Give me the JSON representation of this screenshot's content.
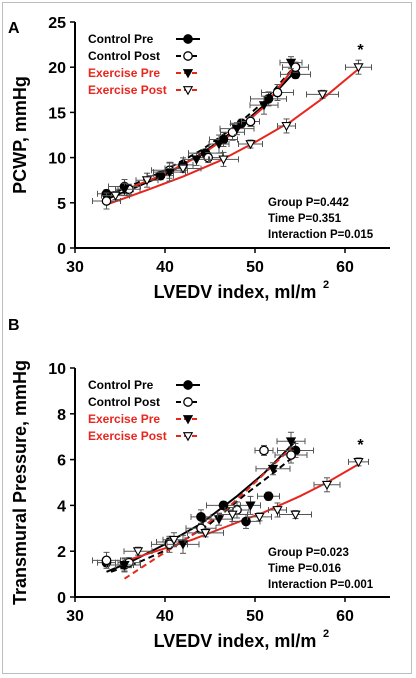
{
  "colors": {
    "control": "#000000",
    "exercise": "#e8261e"
  },
  "panels": [
    {
      "panel_label": "A",
      "stats": [
        "Group P=0.442",
        "Time P=0.351",
        "Interaction P=0.015"
      ],
      "legend": [
        {
          "label": "Control Pre"
        },
        {
          "label": "Control Post"
        },
        {
          "label": "Exercise Pre"
        },
        {
          "label": "Exercise Post"
        }
      ],
      "annotation": "*"
    },
    {
      "panel_label": "B",
      "stats": [
        "Group P=0.023",
        "Time P=0.016",
        "Interaction P=0.001"
      ],
      "legend": [
        {
          "label": "Control Pre"
        },
        {
          "label": "Control Post"
        },
        {
          "label": "Exercise Pre"
        },
        {
          "label": "Exercise Post"
        }
      ],
      "annotation": "*"
    }
  ],
  "chart_data": [
    {
      "type": "scatter",
      "panel": "A",
      "ylabel": "PCWP, mmHg",
      "xlabel": "LVEDV index, ml/m",
      "xlabel_sup": "2",
      "xlim": [
        30,
        65
      ],
      "ylim": [
        0,
        25
      ],
      "xticks": [
        30,
        40,
        50,
        60
      ],
      "yticks": [
        0,
        5,
        10,
        15,
        20,
        25
      ],
      "legend_position": "top-left",
      "series": [
        {
          "name": "Control Pre",
          "color": "#000000",
          "marker": "circle-filled",
          "line": "solid",
          "points": [
            [
              33.5,
              6.0
            ],
            [
              35.5,
              6.8
            ],
            [
              39.5,
              8.0
            ],
            [
              42.0,
              9.2
            ],
            [
              44.5,
              10.5
            ],
            [
              46.5,
              12.0
            ],
            [
              48.5,
              13.8
            ],
            [
              51.5,
              16.5
            ],
            [
              54.5,
              19.2
            ]
          ],
          "fit": [
            [
              33.5,
              5.4
            ],
            [
              36,
              6.4
            ],
            [
              40,
              8.1
            ],
            [
              44,
              10.4
            ],
            [
              48,
              13.2
            ],
            [
              51,
              15.8
            ],
            [
              54.5,
              19.6
            ]
          ]
        },
        {
          "name": "Control Post",
          "color": "#000000",
          "marker": "circle-open",
          "line": "dashed",
          "points": [
            [
              33.5,
              5.2
            ],
            [
              36.0,
              6.5
            ],
            [
              40.5,
              8.6
            ],
            [
              44.8,
              10.0
            ],
            [
              47.5,
              12.8
            ],
            [
              49.5,
              14.0
            ],
            [
              52.5,
              17.2
            ],
            [
              54.5,
              20.0
            ]
          ],
          "fit": [
            [
              33.5,
              5.8
            ],
            [
              36,
              6.8
            ],
            [
              40,
              8.6
            ],
            [
              44,
              10.8
            ],
            [
              48,
              13.6
            ],
            [
              51,
              16.2
            ],
            [
              54.5,
              20.2
            ]
          ]
        },
        {
          "name": "Exercise Pre",
          "color": "#e8261e",
          "marker": "triangle-filled",
          "line": "solid",
          "points": [
            [
              35.5,
              6.5
            ],
            [
              40.5,
              8.4
            ],
            [
              43.5,
              9.8
            ],
            [
              46.0,
              11.5
            ],
            [
              48.0,
              13.2
            ],
            [
              51.0,
              15.8
            ],
            [
              54.0,
              20.5
            ]
          ],
          "fit": [
            [
              35.5,
              6.4
            ],
            [
              40,
              8.2
            ],
            [
              44,
              10.3
            ],
            [
              48,
              13.0
            ],
            [
              51,
              15.6
            ],
            [
              54.2,
              19.8
            ]
          ]
        },
        {
          "name": "Exercise Post",
          "color": "#e8261e",
          "marker": "triangle-open",
          "line": "solid",
          "points": [
            [
              34.5,
              5.8
            ],
            [
              38.0,
              7.5
            ],
            [
              42.0,
              8.8
            ],
            [
              46.5,
              9.8
            ],
            [
              49.5,
              11.5
            ],
            [
              53.5,
              13.5
            ],
            [
              57.5,
              17.0
            ],
            [
              61.5,
              20.0
            ]
          ],
          "fit": [
            [
              33.5,
              4.8
            ],
            [
              38,
              6.4
            ],
            [
              42,
              7.9
            ],
            [
              46,
              9.6
            ],
            [
              50,
              11.7
            ],
            [
              54,
              14.0
            ],
            [
              58,
              16.9
            ],
            [
              61.5,
              19.8
            ]
          ]
        }
      ]
    },
    {
      "type": "scatter",
      "panel": "B",
      "ylabel": "Transmural Pressure, mmHg",
      "xlabel": "LVEDV index, ml/m",
      "xlabel_sup": "2",
      "xlim": [
        30,
        65
      ],
      "ylim": [
        0,
        10
      ],
      "xticks": [
        30,
        40,
        50,
        60
      ],
      "yticks": [
        0,
        2,
        4,
        6,
        8,
        10
      ],
      "legend_position": "top-left",
      "series": [
        {
          "name": "Control Pre",
          "color": "#000000",
          "marker": "circle-filled",
          "line": "solid",
          "points": [
            [
              33.5,
              1.5
            ],
            [
              35.5,
              1.4
            ],
            [
              40.5,
              2.4
            ],
            [
              44.0,
              3.5
            ],
            [
              46.5,
              4.0
            ],
            [
              49.0,
              3.3
            ],
            [
              51.5,
              4.4
            ],
            [
              54.5,
              6.4
            ]
          ],
          "fit": [
            [
              33.5,
              1.1
            ],
            [
              36,
              1.5
            ],
            [
              40,
              2.3
            ],
            [
              44,
              3.2
            ],
            [
              48,
              4.4
            ],
            [
              51,
              5.4
            ],
            [
              54.5,
              6.8
            ]
          ]
        },
        {
          "name": "Control Post",
          "color": "#000000",
          "marker": "circle-open",
          "line": "dashed",
          "points": [
            [
              33.5,
              1.6
            ],
            [
              36.0,
              1.5
            ],
            [
              40.5,
              2.3
            ],
            [
              44.0,
              3.0
            ],
            [
              48.0,
              3.8
            ],
            [
              51.0,
              6.4
            ],
            [
              54.0,
              6.2
            ]
          ],
          "fit": [
            [
              34,
              1.1
            ],
            [
              37,
              1.5
            ],
            [
              41,
              2.2
            ],
            [
              45,
              3.2
            ],
            [
              49,
              4.5
            ],
            [
              52,
              5.4
            ],
            [
              54.5,
              6.2
            ]
          ]
        },
        {
          "name": "Exercise Pre",
          "color": "#e8261e",
          "marker": "triangle-filled",
          "line": "dashed",
          "points": [
            [
              35.5,
              1.4
            ],
            [
              42.0,
              2.3
            ],
            [
              46.0,
              3.4
            ],
            [
              49.5,
              4.0
            ],
            [
              52.0,
              5.6
            ],
            [
              54.0,
              6.8
            ]
          ],
          "fit": [
            [
              35.5,
              0.8
            ],
            [
              39,
              1.7
            ],
            [
              43,
              2.7
            ],
            [
              47,
              3.9
            ],
            [
              50,
              5.0
            ],
            [
              54,
              6.5
            ]
          ]
        },
        {
          "name": "Exercise Post",
          "color": "#e8261e",
          "marker": "triangle-open",
          "line": "solid",
          "points": [
            [
              37.0,
              2.0
            ],
            [
              41.0,
              2.5
            ],
            [
              44.5,
              2.8
            ],
            [
              47.5,
              3.6
            ],
            [
              50.5,
              3.5
            ],
            [
              52.5,
              3.8
            ],
            [
              54.5,
              3.6
            ],
            [
              58.0,
              4.9
            ],
            [
              61.5,
              5.9
            ]
          ],
          "fit": [
            [
              35,
              1.5
            ],
            [
              39,
              2.0
            ],
            [
              43,
              2.5
            ],
            [
              47,
              3.1
            ],
            [
              51,
              3.7
            ],
            [
              55,
              4.4
            ],
            [
              58,
              5.0
            ],
            [
              61.5,
              5.8
            ]
          ]
        }
      ]
    }
  ]
}
